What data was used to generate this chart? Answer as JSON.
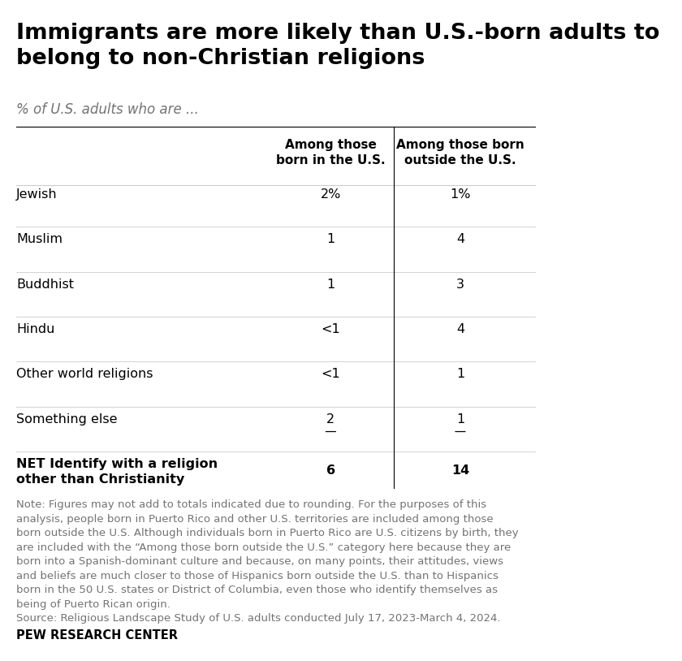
{
  "title": "Immigrants are more likely than U.S.-born adults to\nbelong to non-Christian religions",
  "subtitle": "% of U.S. adults who are ...",
  "col1_header_line1": "Among those",
  "col1_header_line2": "born in the U.S.",
  "col2_header_line1": "Among those born",
  "col2_header_line2": "outside the U.S.",
  "rows": [
    {
      "label": "Jewish",
      "col1": "2%",
      "col2": "1%",
      "bold": false,
      "underline_col1": false,
      "underline_col2": false
    },
    {
      "label": "Muslim",
      "col1": "1",
      "col2": "4",
      "bold": false,
      "underline_col1": false,
      "underline_col2": false
    },
    {
      "label": "Buddhist",
      "col1": "1",
      "col2": "3",
      "bold": false,
      "underline_col1": false,
      "underline_col2": false
    },
    {
      "label": "Hindu",
      "col1": "<1",
      "col2": "4",
      "bold": false,
      "underline_col1": false,
      "underline_col2": false
    },
    {
      "label": "Other world religions",
      "col1": "<1",
      "col2": "1",
      "bold": false,
      "underline_col1": false,
      "underline_col2": false
    },
    {
      "label": "Something else",
      "col1": "2",
      "col2": "1",
      "bold": false,
      "underline_col1": true,
      "underline_col2": true
    },
    {
      "label": "NET Identify with a religion\nother than Christianity",
      "col1": "6",
      "col2": "14",
      "bold": true,
      "underline_col1": false,
      "underline_col2": false
    }
  ],
  "note_text": "Note: Figures may not add to totals indicated due to rounding. For the purposes of this\nanalysis, people born in Puerto Rico and other U.S. territories are included among those\nborn outside the U.S. Although individuals born in Puerto Rico are U.S. citizens by birth, they\nare included with the “Among those born outside the U.S.” category here because they are\nborn into a Spanish-dominant culture and because, on many points, their attitudes, views\nand beliefs are much closer to those of Hispanics born outside the U.S. than to Hispanics\nborn in the 50 U.S. states or District of Columbia, even those who identify themselves as\nbeing of Puerto Rican origin.\nSource: Religious Landscape Study of U.S. adults conducted July 17, 2023-March 4, 2024.",
  "footer": "PEW RESEARCH CENTER",
  "bg_color": "#ffffff",
  "title_color": "#000000",
  "subtitle_color": "#737373",
  "header_color": "#000000",
  "row_label_color": "#000000",
  "data_color": "#000000",
  "note_color": "#737373",
  "footer_color": "#000000",
  "divider_color": "#000000",
  "line_color": "#cccccc"
}
